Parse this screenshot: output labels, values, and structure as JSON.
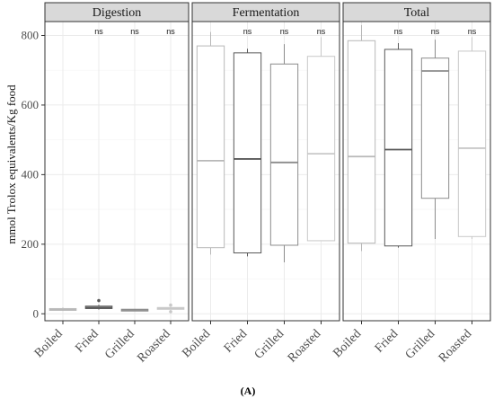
{
  "figure": {
    "caption": "(A)",
    "ylabel": "mmol Trolox equivalents/Kg food",
    "significance_label": "ns"
  },
  "chart_data": {
    "type": "boxplot",
    "ylim": [
      -20,
      840
    ],
    "yticks": [
      0,
      200,
      400,
      600,
      800
    ],
    "categories": [
      "Boiled",
      "Fried",
      "Grilled",
      "Roasted"
    ],
    "grid": true,
    "colors": {
      "Boiled": "#b8b8b8",
      "Fried": "#595959",
      "Grilled": "#8c8c8c",
      "Roasted": "#c8c8c8",
      "strip_fill": "#d9d9d9",
      "panel_border": "#333333",
      "grid": "#ebebeb"
    },
    "panels": [
      {
        "name": "Digestion",
        "ns": [
          "",
          "ns",
          "ns",
          "ns"
        ],
        "boxes": [
          {
            "category": "Boiled",
            "min": 8,
            "q1": 10,
            "median": 12,
            "q3": 15,
            "max": 18,
            "outliers": []
          },
          {
            "category": "Fried",
            "min": 12,
            "q1": 15,
            "median": 18,
            "q3": 22,
            "max": 26,
            "outliers": [
              38
            ]
          },
          {
            "category": "Grilled",
            "min": 8,
            "q1": 9,
            "median": 11,
            "q3": 13,
            "max": 14,
            "outliers": []
          },
          {
            "category": "Roasted",
            "min": 14,
            "q1": 15,
            "median": 16,
            "q3": 18,
            "max": 19,
            "outliers": [
              25,
              6
            ]
          }
        ]
      },
      {
        "name": "Fermentation",
        "ns": [
          "",
          "ns",
          "ns",
          "ns"
        ],
        "boxes": [
          {
            "category": "Boiled",
            "min": 170,
            "q1": 190,
            "median": 440,
            "q3": 770,
            "max": 810,
            "outliers": []
          },
          {
            "category": "Fried",
            "min": 165,
            "q1": 175,
            "median": 445,
            "q3": 750,
            "max": 762,
            "outliers": []
          },
          {
            "category": "Grilled",
            "min": 148,
            "q1": 197,
            "median": 435,
            "q3": 718,
            "max": 775,
            "outliers": []
          },
          {
            "category": "Roasted",
            "min": 210,
            "q1": 210,
            "median": 460,
            "q3": 740,
            "max": 795,
            "outliers": []
          }
        ]
      },
      {
        "name": "Total",
        "ns": [
          "",
          "ns",
          "ns",
          "ns"
        ],
        "boxes": [
          {
            "category": "Boiled",
            "min": 180,
            "q1": 203,
            "median": 452,
            "q3": 785,
            "max": 830,
            "outliers": []
          },
          {
            "category": "Fried",
            "min": 190,
            "q1": 195,
            "median": 472,
            "q3": 760,
            "max": 778,
            "outliers": []
          },
          {
            "category": "Grilled",
            "min": 215,
            "q1": 332,
            "median": 698,
            "q3": 735,
            "max": 788,
            "outliers": []
          },
          {
            "category": "Roasted",
            "min": 215,
            "q1": 222,
            "median": 476,
            "q3": 755,
            "max": 795,
            "outliers": []
          }
        ]
      }
    ]
  }
}
